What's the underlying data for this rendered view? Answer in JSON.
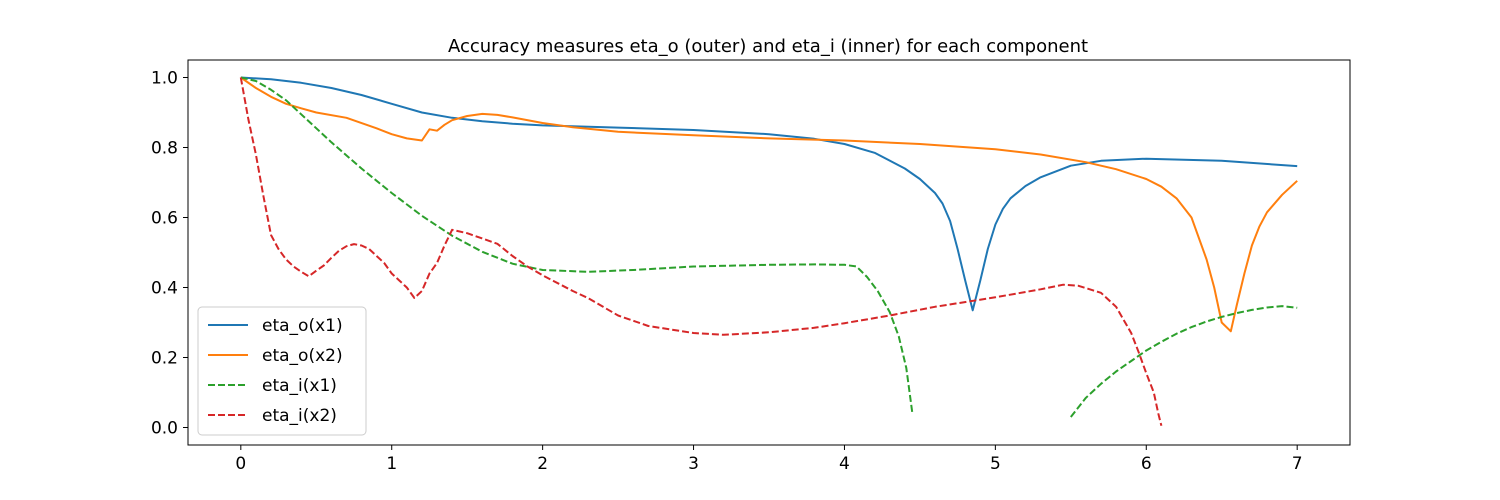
{
  "chart_data": {
    "type": "line",
    "title": "Accuracy measures eta_o (outer) and eta_i (inner) for each component",
    "xlabel": "",
    "ylabel": "",
    "xlim": [
      -0.35,
      7.35
    ],
    "ylim": [
      -0.05,
      1.05
    ],
    "xticks": [
      0,
      1,
      2,
      3,
      4,
      5,
      6,
      7
    ],
    "yticks": [
      0.0,
      0.2,
      0.4,
      0.6,
      0.8,
      1.0
    ],
    "xtick_labels": [
      "0",
      "1",
      "2",
      "3",
      "4",
      "5",
      "6",
      "7"
    ],
    "ytick_labels": [
      "0.0",
      "0.2",
      "0.4",
      "0.6",
      "0.8",
      "1.0"
    ],
    "grid": false,
    "legend_position": "lower-left",
    "series": [
      {
        "name": "eta_o(x1)",
        "color": "#1f77b4",
        "style": "solid",
        "points": [
          [
            0,
            1.0
          ],
          [
            0.2,
            0.995
          ],
          [
            0.4,
            0.985
          ],
          [
            0.6,
            0.97
          ],
          [
            0.8,
            0.95
          ],
          [
            1.0,
            0.925
          ],
          [
            1.2,
            0.9
          ],
          [
            1.4,
            0.885
          ],
          [
            1.6,
            0.875
          ],
          [
            1.8,
            0.868
          ],
          [
            2.0,
            0.863
          ],
          [
            2.5,
            0.857
          ],
          [
            3.0,
            0.85
          ],
          [
            3.5,
            0.838
          ],
          [
            3.8,
            0.825
          ],
          [
            4.0,
            0.81
          ],
          [
            4.2,
            0.785
          ],
          [
            4.4,
            0.74
          ],
          [
            4.5,
            0.71
          ],
          [
            4.6,
            0.67
          ],
          [
            4.65,
            0.64
          ],
          [
            4.7,
            0.59
          ],
          [
            4.75,
            0.51
          ],
          [
            4.8,
            0.42
          ],
          [
            4.85,
            0.335
          ],
          [
            4.9,
            0.42
          ],
          [
            4.95,
            0.51
          ],
          [
            5.0,
            0.58
          ],
          [
            5.05,
            0.625
          ],
          [
            5.1,
            0.655
          ],
          [
            5.2,
            0.69
          ],
          [
            5.3,
            0.715
          ],
          [
            5.5,
            0.748
          ],
          [
            5.7,
            0.762
          ],
          [
            6.0,
            0.768
          ],
          [
            6.5,
            0.762
          ],
          [
            7.0,
            0.747
          ]
        ]
      },
      {
        "name": "eta_o(x2)",
        "color": "#ff7f0e",
        "style": "solid",
        "points": [
          [
            0,
            1.0
          ],
          [
            0.1,
            0.97
          ],
          [
            0.2,
            0.945
          ],
          [
            0.3,
            0.925
          ],
          [
            0.4,
            0.912
          ],
          [
            0.5,
            0.9
          ],
          [
            0.7,
            0.885
          ],
          [
            0.9,
            0.855
          ],
          [
            1.0,
            0.838
          ],
          [
            1.1,
            0.826
          ],
          [
            1.2,
            0.82
          ],
          [
            1.25,
            0.852
          ],
          [
            1.3,
            0.848
          ],
          [
            1.35,
            0.865
          ],
          [
            1.4,
            0.878
          ],
          [
            1.5,
            0.89
          ],
          [
            1.6,
            0.896
          ],
          [
            1.7,
            0.893
          ],
          [
            1.8,
            0.886
          ],
          [
            2.0,
            0.87
          ],
          [
            2.2,
            0.858
          ],
          [
            2.5,
            0.845
          ],
          [
            3.0,
            0.835
          ],
          [
            3.5,
            0.826
          ],
          [
            4.0,
            0.82
          ],
          [
            4.5,
            0.81
          ],
          [
            5.0,
            0.795
          ],
          [
            5.3,
            0.78
          ],
          [
            5.6,
            0.758
          ],
          [
            5.8,
            0.738
          ],
          [
            6.0,
            0.71
          ],
          [
            6.1,
            0.688
          ],
          [
            6.2,
            0.655
          ],
          [
            6.3,
            0.6
          ],
          [
            6.4,
            0.48
          ],
          [
            6.45,
            0.4
          ],
          [
            6.5,
            0.3
          ],
          [
            6.56,
            0.275
          ],
          [
            6.6,
            0.35
          ],
          [
            6.65,
            0.44
          ],
          [
            6.7,
            0.52
          ],
          [
            6.75,
            0.575
          ],
          [
            6.8,
            0.615
          ],
          [
            6.9,
            0.665
          ],
          [
            7.0,
            0.705
          ]
        ]
      },
      {
        "name": "eta_i(x1)",
        "color": "#2ca02c",
        "style": "dashed",
        "segments": [
          [
            [
              0,
              1.0
            ],
            [
              0.1,
              0.99
            ],
            [
              0.2,
              0.965
            ],
            [
              0.3,
              0.935
            ],
            [
              0.4,
              0.895
            ],
            [
              0.6,
              0.815
            ],
            [
              0.8,
              0.74
            ],
            [
              1.0,
              0.67
            ],
            [
              1.2,
              0.605
            ],
            [
              1.4,
              0.548
            ],
            [
              1.6,
              0.502
            ],
            [
              1.8,
              0.468
            ],
            [
              2.0,
              0.45
            ],
            [
              2.3,
              0.445
            ],
            [
              2.6,
              0.45
            ],
            [
              3.0,
              0.46
            ],
            [
              3.5,
              0.465
            ],
            [
              3.8,
              0.466
            ],
            [
              4.0,
              0.465
            ],
            [
              4.08,
              0.46
            ],
            [
              4.15,
              0.43
            ],
            [
              4.22,
              0.39
            ],
            [
              4.3,
              0.33
            ],
            [
              4.36,
              0.26
            ],
            [
              4.41,
              0.17
            ],
            [
              4.45,
              0.04
            ]
          ],
          [
            [
              5.5,
              0.03
            ],
            [
              5.6,
              0.085
            ],
            [
              5.7,
              0.125
            ],
            [
              5.8,
              0.16
            ],
            [
              5.9,
              0.19
            ],
            [
              6.0,
              0.22
            ],
            [
              6.1,
              0.245
            ],
            [
              6.2,
              0.268
            ],
            [
              6.3,
              0.287
            ],
            [
              6.4,
              0.303
            ],
            [
              6.5,
              0.316
            ],
            [
              6.6,
              0.327
            ],
            [
              6.7,
              0.336
            ],
            [
              6.8,
              0.343
            ],
            [
              6.9,
              0.347
            ],
            [
              7.0,
              0.342
            ]
          ]
        ]
      },
      {
        "name": "eta_i(x2)",
        "color": "#d62728",
        "style": "dashed",
        "points": [
          [
            0,
            1.0
          ],
          [
            0.05,
            0.88
          ],
          [
            0.1,
            0.78
          ],
          [
            0.15,
            0.66
          ],
          [
            0.2,
            0.55
          ],
          [
            0.25,
            0.51
          ],
          [
            0.3,
            0.48
          ],
          [
            0.35,
            0.46
          ],
          [
            0.4,
            0.445
          ],
          [
            0.45,
            0.432
          ],
          [
            0.5,
            0.448
          ],
          [
            0.55,
            0.463
          ],
          [
            0.6,
            0.485
          ],
          [
            0.65,
            0.505
          ],
          [
            0.7,
            0.518
          ],
          [
            0.75,
            0.524
          ],
          [
            0.8,
            0.52
          ],
          [
            0.85,
            0.51
          ],
          [
            0.9,
            0.49
          ],
          [
            0.95,
            0.47
          ],
          [
            1.0,
            0.44
          ],
          [
            1.05,
            0.42
          ],
          [
            1.1,
            0.4
          ],
          [
            1.15,
            0.37
          ],
          [
            1.2,
            0.39
          ],
          [
            1.25,
            0.44
          ],
          [
            1.3,
            0.47
          ],
          [
            1.35,
            0.52
          ],
          [
            1.4,
            0.565
          ],
          [
            1.5,
            0.555
          ],
          [
            1.6,
            0.54
          ],
          [
            1.7,
            0.525
          ],
          [
            1.8,
            0.49
          ],
          [
            1.9,
            0.46
          ],
          [
            2.0,
            0.435
          ],
          [
            2.2,
            0.39
          ],
          [
            2.3,
            0.37
          ],
          [
            2.5,
            0.32
          ],
          [
            2.7,
            0.29
          ],
          [
            3.0,
            0.27
          ],
          [
            3.2,
            0.265
          ],
          [
            3.5,
            0.272
          ],
          [
            3.8,
            0.285
          ],
          [
            4.0,
            0.298
          ],
          [
            4.3,
            0.32
          ],
          [
            4.6,
            0.345
          ],
          [
            5.0,
            0.372
          ],
          [
            5.3,
            0.395
          ],
          [
            5.45,
            0.408
          ],
          [
            5.55,
            0.405
          ],
          [
            5.7,
            0.385
          ],
          [
            5.8,
            0.345
          ],
          [
            5.9,
            0.27
          ],
          [
            5.95,
            0.215
          ],
          [
            6.0,
            0.155
          ],
          [
            6.05,
            0.1
          ],
          [
            6.08,
            0.04
          ],
          [
            6.1,
            0.005
          ]
        ]
      }
    ]
  }
}
